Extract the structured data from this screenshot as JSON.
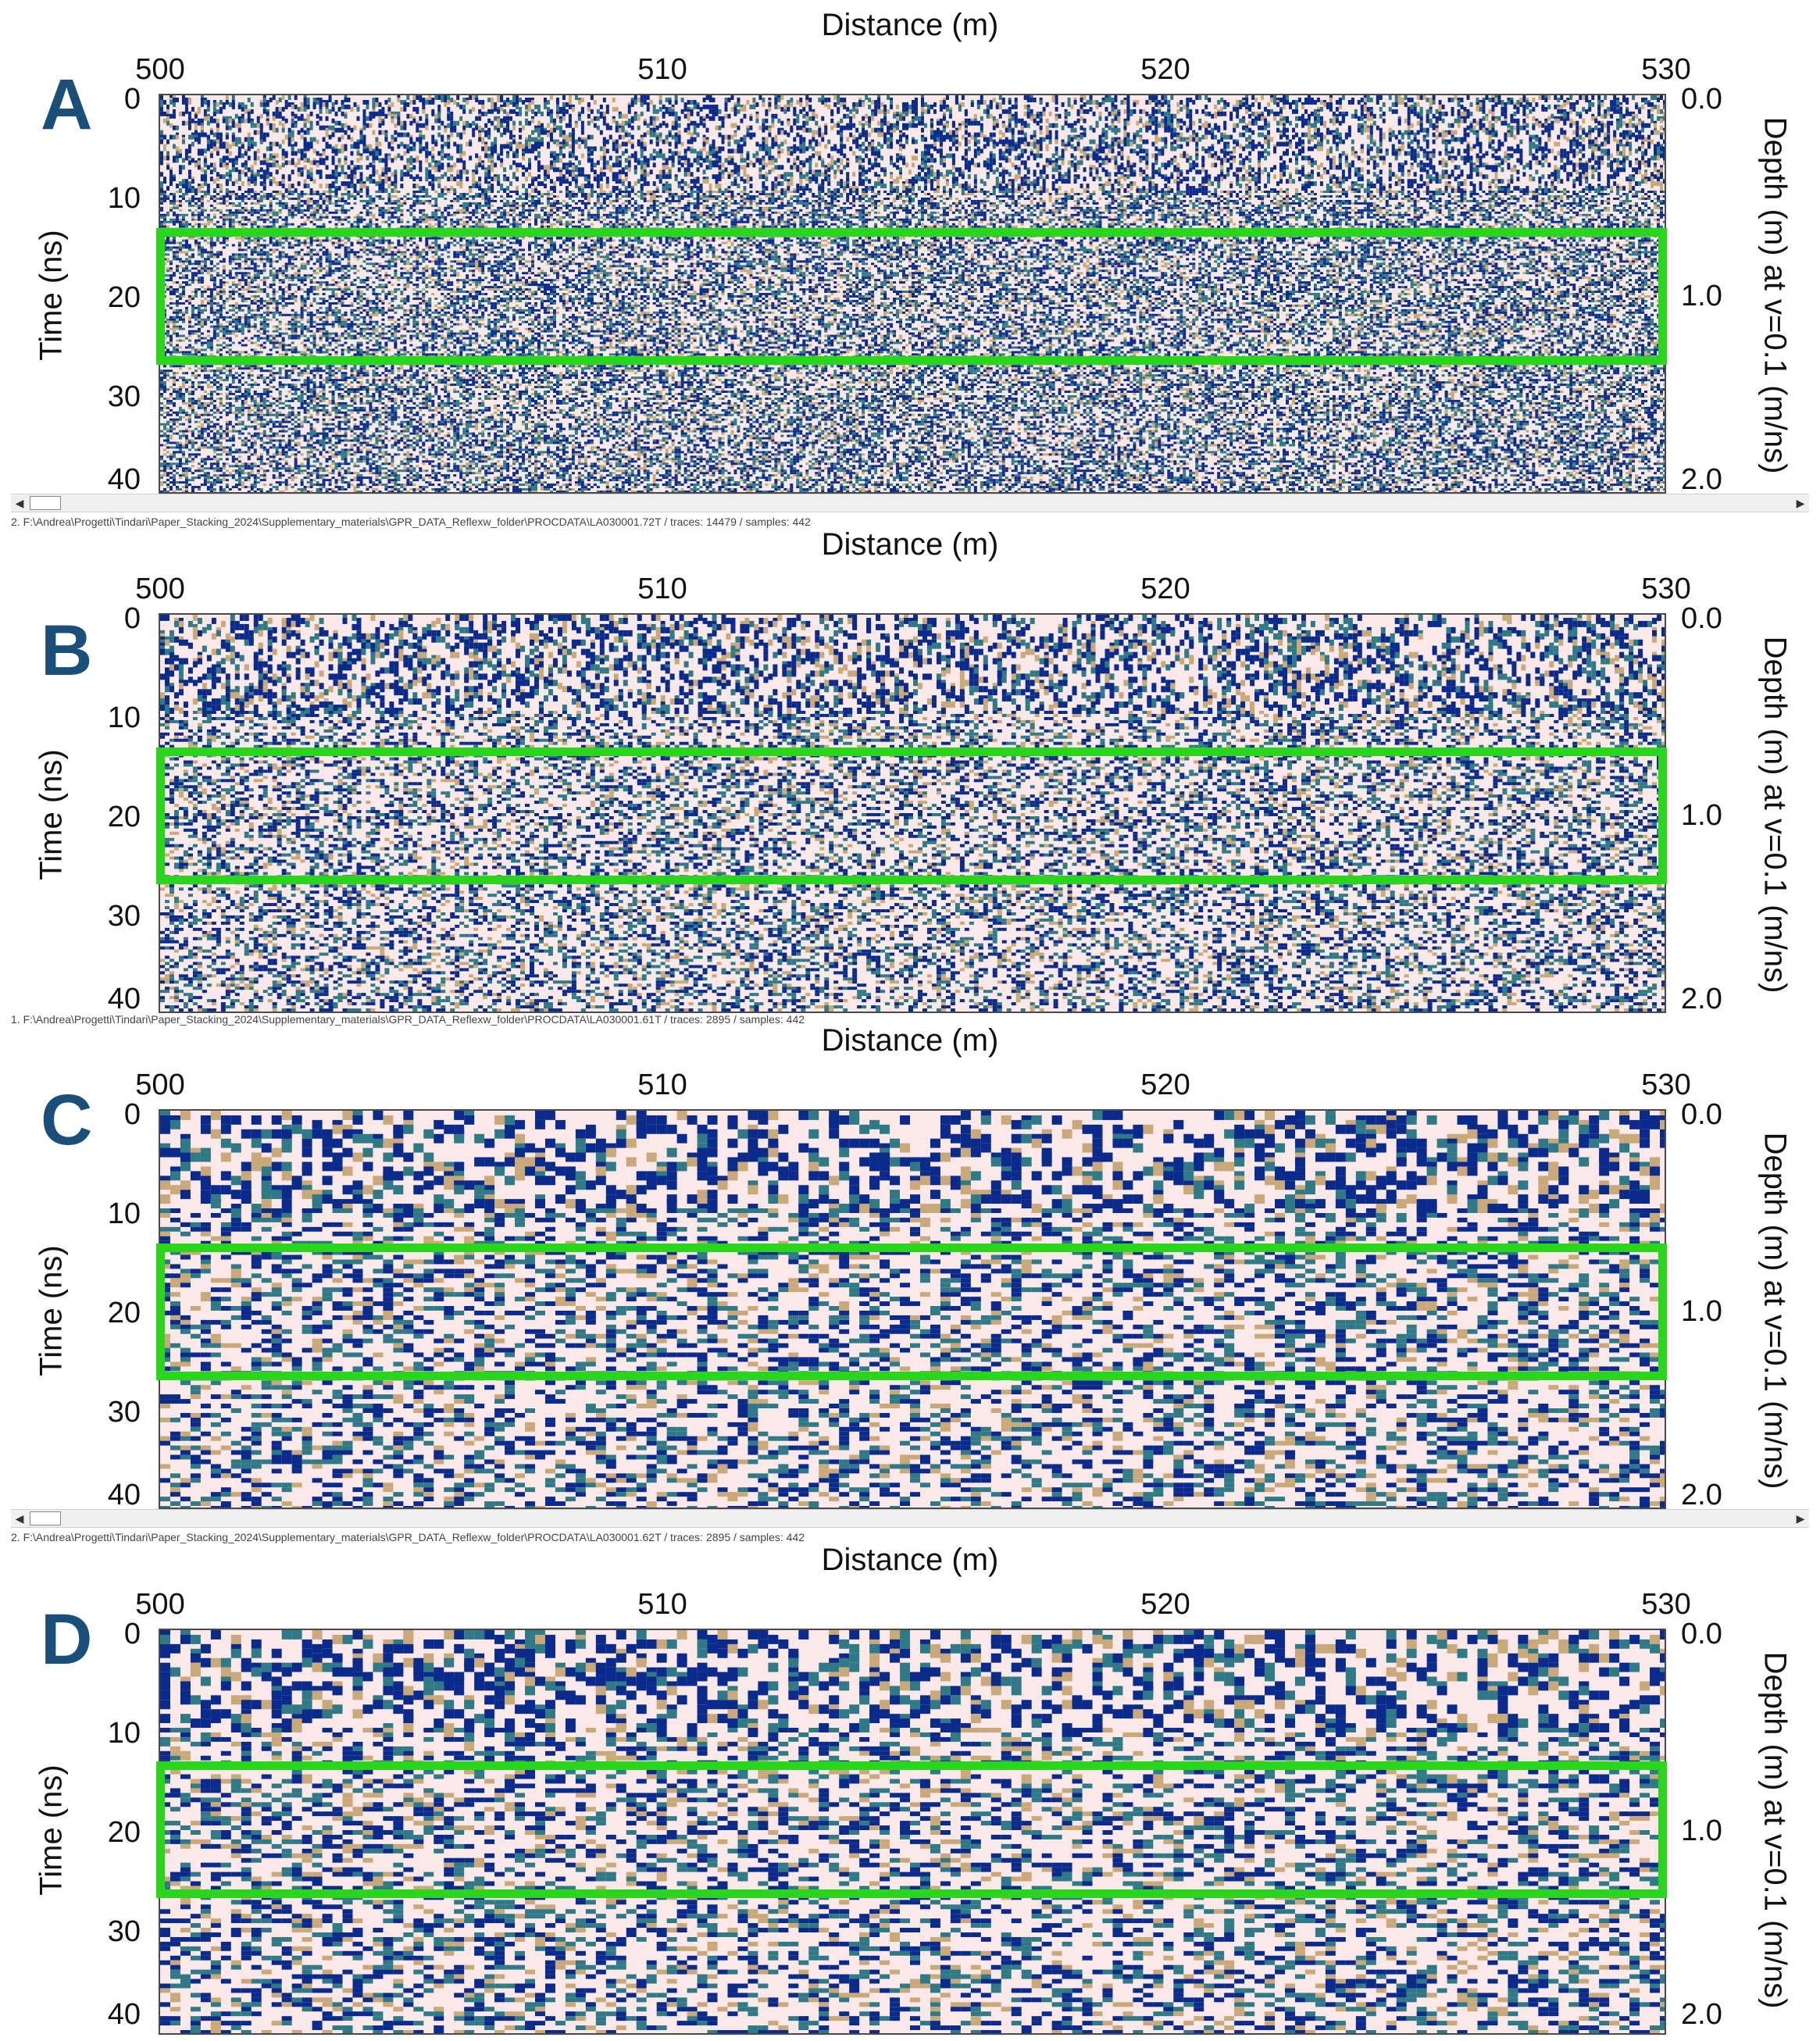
{
  "axis": {
    "x_title": "Distance (m)",
    "y_left_title": "Time (ns)",
    "y_right_title": "Depth (m) at v=0.1 (m/ns)",
    "x_ticks": [
      "500",
      "510",
      "520",
      "530"
    ],
    "x_tick_values": [
      500,
      510,
      520,
      530
    ],
    "x_range": [
      500,
      530
    ],
    "y_left_ticks": [
      "0",
      "10",
      "20",
      "30",
      "40"
    ],
    "y_left_tick_values": [
      0,
      10,
      20,
      30,
      40
    ],
    "y_left_range": [
      0,
      40
    ],
    "y_right_ticks": [
      "0.0",
      "1.0",
      "2.0"
    ],
    "y_right_tick_values": [
      0.0,
      1.0,
      2.0
    ]
  },
  "roi": {
    "time_start_ns": 13.5,
    "time_end_ns": 26.5,
    "color": "#2ad61c"
  },
  "colors": {
    "reflector": "#0a2a8c",
    "mid": "#2f7a86",
    "light": "#c9a87a",
    "background": "#fbe9e9",
    "letter": "#1a4f7a"
  },
  "panels": [
    {
      "letter": "A",
      "status_path": "2. F:\\Andrea\\Progetti\\Tindari\\Paper_Stacking_2024\\Supplementary_materials\\GPR_DATA_Reflexw_folder\\PROCDATA\\LA030001.72T / traces: 14479 / samples: 442",
      "scrollbar": true
    },
    {
      "letter": "B",
      "status_path": "1. F:\\Andrea\\Progetti\\Tindari\\Paper_Stacking_2024\\Supplementary_materials\\GPR_DATA_Reflexw_folder\\PROCDATA\\LA030001.61T / traces: 2895 / samples: 442",
      "scrollbar": false
    },
    {
      "letter": "C",
      "status_path": "2. F:\\Andrea\\Progetti\\Tindari\\Paper_Stacking_2024\\Supplementary_materials\\GPR_DATA_Reflexw_folder\\PROCDATA\\LA030001.62T / traces: 2895 / samples: 442",
      "scrollbar": true
    },
    {
      "letter": "D",
      "status_path": "",
      "scrollbar": false
    }
  ]
}
